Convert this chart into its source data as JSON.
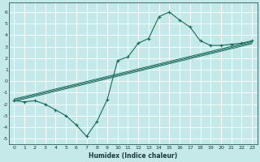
{
  "xlabel": "Humidex (Indice chaleur)",
  "background_color": "#c5e8e8",
  "grid_color": "#ffffff",
  "line_color": "#1a6b5a",
  "xlim": [
    -0.5,
    23.5
  ],
  "ylim": [
    -5.5,
    6.8
  ],
  "xticks": [
    0,
    1,
    2,
    3,
    4,
    5,
    6,
    7,
    8,
    9,
    10,
    11,
    12,
    13,
    14,
    15,
    16,
    17,
    18,
    19,
    20,
    21,
    22,
    23
  ],
  "yticks": [
    -5,
    -4,
    -3,
    -2,
    -1,
    0,
    1,
    2,
    3,
    4,
    5,
    6
  ],
  "main_series_x": [
    0,
    1,
    2,
    3,
    4,
    5,
    6,
    7,
    8,
    9,
    10,
    11,
    12,
    13,
    14,
    15,
    16,
    17,
    18,
    19,
    20,
    21,
    22,
    23
  ],
  "main_series_y": [
    -1.7,
    -1.8,
    -1.7,
    -2.0,
    -2.5,
    -3.0,
    -3.8,
    -4.8,
    -3.5,
    -1.6,
    1.8,
    2.1,
    3.3,
    3.7,
    5.6,
    6.0,
    5.3,
    4.7,
    3.5,
    3.1,
    3.1,
    3.2,
    3.3,
    3.5
  ],
  "straight_lines": [
    {
      "x0": 0,
      "y0": -1.55,
      "x1": 23,
      "y1": 3.45
    },
    {
      "x0": 0,
      "y0": -1.65,
      "x1": 23,
      "y1": 3.35
    },
    {
      "x0": 0,
      "y0": -1.75,
      "x1": 23,
      "y1": 3.25
    }
  ]
}
